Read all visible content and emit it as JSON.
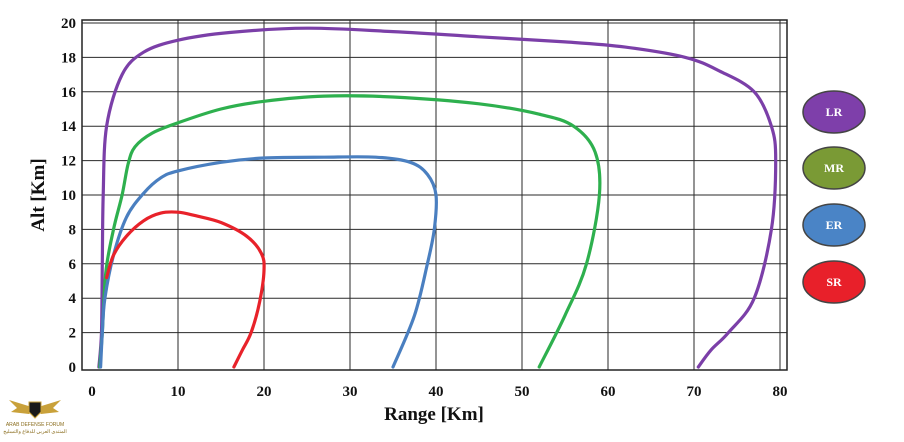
{
  "chart_data": {
    "type": "line",
    "xlabel": "Range [Km]",
    "ylabel": "Alt [Km]",
    "xlim": [
      0,
      80
    ],
    "ylim": [
      0,
      20
    ],
    "xticks": [
      0,
      10,
      20,
      30,
      40,
      50,
      60,
      70,
      80
    ],
    "yticks": [
      0,
      2,
      4,
      6,
      8,
      10,
      12,
      14,
      16,
      18,
      20
    ],
    "grid": true,
    "legend_position": "right",
    "series": [
      {
        "name": "LR",
        "color": "#7b3fa8",
        "points": [
          [
            0.8,
            0
          ],
          [
            1.1,
            2
          ],
          [
            1.2,
            6
          ],
          [
            1.3,
            10
          ],
          [
            1.7,
            14
          ],
          [
            3.5,
            17
          ],
          [
            6,
            18.3
          ],
          [
            10,
            19
          ],
          [
            16,
            19.45
          ],
          [
            25,
            19.7
          ],
          [
            35,
            19.5
          ],
          [
            45,
            19.2
          ],
          [
            55,
            18.9
          ],
          [
            62,
            18.6
          ],
          [
            69,
            18
          ],
          [
            73,
            17.2
          ],
          [
            77,
            16
          ],
          [
            79,
            14
          ],
          [
            79.5,
            12
          ],
          [
            79,
            8
          ],
          [
            77,
            4
          ],
          [
            74,
            2
          ],
          [
            72,
            1
          ],
          [
            70.5,
            0
          ]
        ]
      },
      {
        "name": "MR",
        "color": "#2eb04e",
        "points": [
          [
            0.9,
            0
          ],
          [
            1.2,
            2
          ],
          [
            1.6,
            5.5
          ],
          [
            2.5,
            8
          ],
          [
            3.5,
            10
          ],
          [
            4.2,
            11.8
          ],
          [
            5,
            12.8
          ],
          [
            7,
            13.6
          ],
          [
            10,
            14.2
          ],
          [
            15,
            15
          ],
          [
            20,
            15.45
          ],
          [
            27,
            15.75
          ],
          [
            35,
            15.7
          ],
          [
            45,
            15.3
          ],
          [
            52,
            14.7
          ],
          [
            56,
            14
          ],
          [
            58.5,
            12.5
          ],
          [
            59,
            10
          ],
          [
            57.5,
            6
          ],
          [
            55,
            3
          ],
          [
            52,
            0
          ]
        ]
      },
      {
        "name": "ER",
        "color": "#4a7fc0",
        "points": [
          [
            1,
            0
          ],
          [
            1.2,
            2
          ],
          [
            1.5,
            4
          ],
          [
            2.5,
            6.5
          ],
          [
            4,
            8.7
          ],
          [
            6,
            10.1
          ],
          [
            8,
            11
          ],
          [
            10,
            11.4
          ],
          [
            15,
            11.9
          ],
          [
            20,
            12.15
          ],
          [
            27,
            12.2
          ],
          [
            33,
            12.2
          ],
          [
            37,
            11.9
          ],
          [
            39,
            11.2
          ],
          [
            40,
            10
          ],
          [
            39.8,
            8
          ],
          [
            39,
            6
          ],
          [
            37.5,
            3
          ],
          [
            35,
            0
          ]
        ]
      },
      {
        "name": "SR",
        "color": "#e8222a",
        "points": [
          [
            1.7,
            5.2
          ],
          [
            2.5,
            6.5
          ],
          [
            4,
            7.6
          ],
          [
            6,
            8.5
          ],
          [
            8,
            8.95
          ],
          [
            10,
            9
          ],
          [
            12,
            8.8
          ],
          [
            15,
            8.4
          ],
          [
            18,
            7.6
          ],
          [
            19.7,
            6.6
          ],
          [
            20,
            5.6
          ],
          [
            19.5,
            3.8
          ],
          [
            18.5,
            2
          ],
          [
            17.5,
            1
          ],
          [
            16.5,
            0
          ]
        ]
      }
    ]
  },
  "legend": {
    "items": [
      {
        "label": "LR",
        "color": "#7e3faa"
      },
      {
        "label": "MR",
        "color": "#7a9a35"
      },
      {
        "label": "ER",
        "color": "#4a84c6"
      },
      {
        "label": "SR",
        "color": "#e8202a"
      }
    ]
  },
  "watermark": {
    "line1": "ARAB DEFENSE FORUM",
    "line2": "المنتدى العربي للدفاع والتسليح"
  }
}
